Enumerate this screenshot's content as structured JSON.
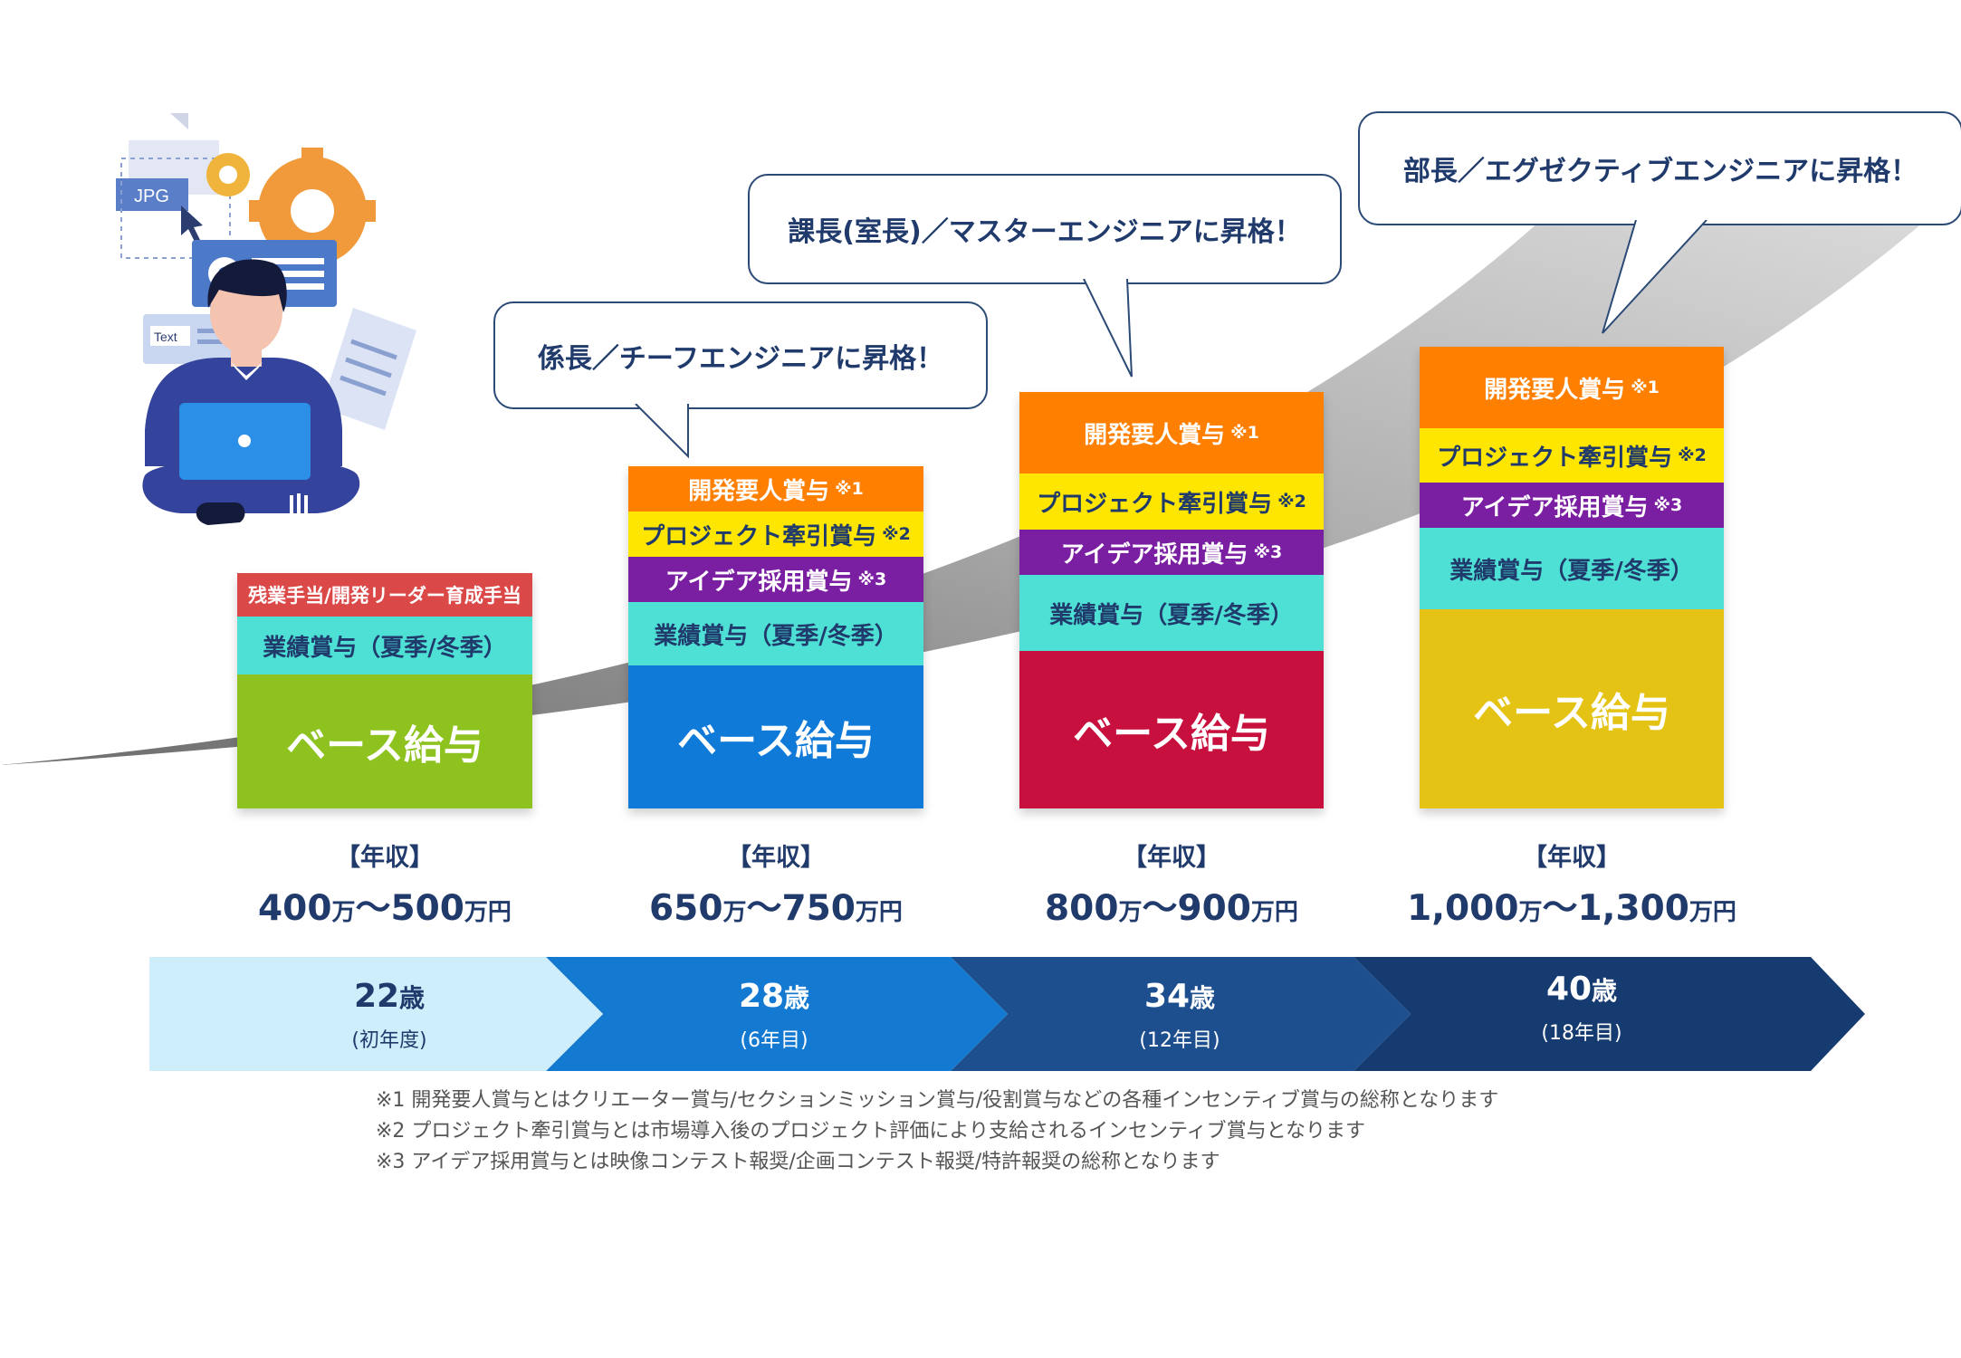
{
  "bubbles": [
    {
      "text": "係長／チーフエンジニアに昇格！"
    },
    {
      "text": "課長(室長)／マスターエンジニアに昇格！"
    },
    {
      "text": "部長／エグゼクティブエンジニアに昇格！"
    }
  ],
  "stages": [
    {
      "allowance": "残業手当/開発リーダー育成手当",
      "performance_bonus": "業績賞与（夏季/冬季）",
      "base": "ベース給与",
      "base_color": "#8dc21f",
      "salary_label": "【年収】",
      "salary_from": "400",
      "salary_to": "500",
      "unit_man": "万",
      "unit_manen": "万円",
      "tilde": "〜",
      "age": "22",
      "age_unit": "歳",
      "year": "(初年度)"
    },
    {
      "dev_bonus": "開発要人賞与",
      "dev_note": "※1",
      "project_bonus": "プロジェクト牽引賞与",
      "project_note": "※2",
      "idea_bonus": "アイデア採用賞与",
      "idea_note": "※3",
      "performance_bonus": "業績賞与（夏季/冬季）",
      "base": "ベース給与",
      "base_color": "#0f7ad8",
      "salary_label": "【年収】",
      "salary_from": "650",
      "salary_to": "750",
      "unit_man": "万",
      "unit_manen": "万円",
      "tilde": "〜",
      "age": "28",
      "age_unit": "歳",
      "year": "(6年目)"
    },
    {
      "dev_bonus": "開発要人賞与",
      "dev_note": "※1",
      "project_bonus": "プロジェクト牽引賞与",
      "project_note": "※2",
      "idea_bonus": "アイデア採用賞与",
      "idea_note": "※3",
      "performance_bonus": "業績賞与（夏季/冬季）",
      "base": "ベース給与",
      "base_color": "#c8103e",
      "salary_label": "【年収】",
      "salary_from": "800",
      "salary_to": "900",
      "unit_man": "万",
      "unit_manen": "万円",
      "tilde": "〜",
      "age": "34",
      "age_unit": "歳",
      "year": "(12年目)"
    },
    {
      "dev_bonus": "開発要人賞与",
      "dev_note": "※1",
      "project_bonus": "プロジェクト牽引賞与",
      "project_note": "※2",
      "idea_bonus": "アイデア採用賞与",
      "idea_note": "※3",
      "performance_bonus": "業績賞与（夏季/冬季）",
      "base": "ベース給与",
      "base_color": "#e5c314",
      "salary_label": "【年収】",
      "salary_from": "1,000",
      "salary_to": "1,300",
      "unit_man": "万",
      "unit_manen": "万円",
      "tilde": "〜",
      "age": "40",
      "age_unit": "歳",
      "year": "(18年目)"
    }
  ],
  "colors": {
    "dev": "#ff7f00",
    "project": "#ffe600",
    "idea": "#7b1fa2",
    "performance": "#4fe0d5",
    "allowance": "#db4848",
    "timeline": [
      "#cfeefc",
      "#1479d1",
      "#1d4f8f",
      "#153b70"
    ]
  },
  "illustration": {
    "jpg_label": "JPG",
    "text_label": "Text"
  },
  "footnotes": [
    "※1 開発要人賞与とはクリエーター賞与/セクションミッション賞与/役割賞与などの各種インセンティブ賞与の総称となります",
    "※2 プロジェクト牽引賞与とは市場導入後のプロジェクト評価により支給されるインセンティブ賞与となります",
    "※3 アイデア採用賞与とは映像コンテスト報奨/企画コンテスト報奨/特許報奨の総称となります"
  ]
}
